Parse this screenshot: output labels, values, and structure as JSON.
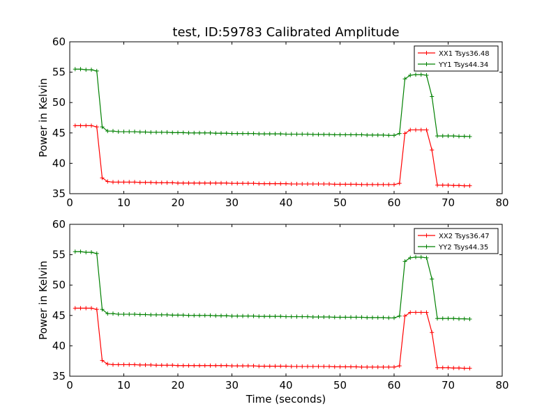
{
  "title": "test, ID:59783 Calibrated Amplitude",
  "xlabel": "Time (seconds)",
  "colors": {
    "xx": "#ff0000",
    "yy": "#008000"
  },
  "chart_data": [
    {
      "type": "line",
      "title": "test, ID:59783 Calibrated Amplitude",
      "xlabel": "",
      "ylabel": "Power in Kelvin",
      "xlim": [
        0,
        80
      ],
      "ylim": [
        35,
        60
      ],
      "xticks": [
        0,
        10,
        20,
        30,
        40,
        50,
        60,
        70,
        80
      ],
      "yticks": [
        35,
        40,
        45,
        50,
        55,
        60
      ],
      "grid": false,
      "legend_position": "top-right",
      "series": [
        {
          "name": "XX1 Tsys36.48",
          "color": "#ff0000",
          "marker": "plus",
          "x": [
            1,
            2,
            3,
            4,
            5,
            6,
            7,
            8,
            9,
            10,
            11,
            12,
            13,
            14,
            15,
            16,
            17,
            18,
            19,
            20,
            21,
            22,
            23,
            24,
            25,
            26,
            27,
            28,
            29,
            30,
            31,
            32,
            33,
            34,
            35,
            36,
            37,
            38,
            39,
            40,
            41,
            42,
            43,
            44,
            45,
            46,
            47,
            48,
            49,
            50,
            51,
            52,
            53,
            54,
            55,
            56,
            57,
            58,
            59,
            60,
            61,
            62,
            63,
            64,
            65,
            66,
            67,
            68,
            69,
            70,
            71,
            72,
            73,
            74
          ],
          "y": [
            46.2,
            46.2,
            46.2,
            46.2,
            46.0,
            37.6,
            37.0,
            36.9,
            36.9,
            36.9,
            36.9,
            36.9,
            36.85,
            36.85,
            36.85,
            36.8,
            36.8,
            36.8,
            36.8,
            36.75,
            36.75,
            36.75,
            36.75,
            36.75,
            36.75,
            36.75,
            36.75,
            36.75,
            36.75,
            36.7,
            36.7,
            36.7,
            36.7,
            36.7,
            36.65,
            36.65,
            36.65,
            36.65,
            36.65,
            36.65,
            36.6,
            36.6,
            36.6,
            36.6,
            36.6,
            36.6,
            36.6,
            36.6,
            36.55,
            36.55,
            36.55,
            36.55,
            36.55,
            36.5,
            36.5,
            36.5,
            36.5,
            36.5,
            36.5,
            36.5,
            36.7,
            44.9,
            45.5,
            45.5,
            45.5,
            45.5,
            42.2,
            36.4,
            36.4,
            36.4,
            36.35,
            36.35,
            36.3,
            36.3
          ]
        },
        {
          "name": "YY1 Tsys44.34",
          "color": "#008000",
          "marker": "plus",
          "x": [
            1,
            2,
            3,
            4,
            5,
            6,
            7,
            8,
            9,
            10,
            11,
            12,
            13,
            14,
            15,
            16,
            17,
            18,
            19,
            20,
            21,
            22,
            23,
            24,
            25,
            26,
            27,
            28,
            29,
            30,
            31,
            32,
            33,
            34,
            35,
            36,
            37,
            38,
            39,
            40,
            41,
            42,
            43,
            44,
            45,
            46,
            47,
            48,
            49,
            50,
            51,
            52,
            53,
            54,
            55,
            56,
            57,
            58,
            59,
            60,
            61,
            62,
            63,
            64,
            65,
            66,
            67,
            68,
            69,
            70,
            71,
            72,
            73,
            74
          ],
          "y": [
            55.5,
            55.5,
            55.4,
            55.4,
            55.2,
            46.0,
            45.3,
            45.3,
            45.2,
            45.2,
            45.2,
            45.2,
            45.15,
            45.15,
            45.1,
            45.1,
            45.1,
            45.1,
            45.05,
            45.05,
            45.05,
            45.0,
            45.0,
            45.0,
            45.0,
            45.0,
            44.95,
            44.95,
            44.95,
            44.9,
            44.9,
            44.9,
            44.9,
            44.9,
            44.85,
            44.85,
            44.85,
            44.85,
            44.85,
            44.8,
            44.8,
            44.8,
            44.8,
            44.8,
            44.75,
            44.75,
            44.75,
            44.75,
            44.7,
            44.7,
            44.7,
            44.7,
            44.7,
            44.7,
            44.65,
            44.65,
            44.65,
            44.65,
            44.6,
            44.6,
            44.9,
            53.9,
            54.5,
            54.6,
            54.6,
            54.5,
            51.0,
            44.5,
            44.5,
            44.5,
            44.5,
            44.45,
            44.45,
            44.4
          ]
        }
      ]
    },
    {
      "type": "line",
      "title": "",
      "xlabel": "Time (seconds)",
      "ylabel": "Power in Kelvin",
      "xlim": [
        0,
        80
      ],
      "ylim": [
        35,
        60
      ],
      "xticks": [
        0,
        10,
        20,
        30,
        40,
        50,
        60,
        70,
        80
      ],
      "yticks": [
        35,
        40,
        45,
        50,
        55,
        60
      ],
      "grid": false,
      "legend_position": "top-right",
      "series": [
        {
          "name": "XX2 Tsys36.47",
          "color": "#ff0000",
          "marker": "plus",
          "x": [
            1,
            2,
            3,
            4,
            5,
            6,
            7,
            8,
            9,
            10,
            11,
            12,
            13,
            14,
            15,
            16,
            17,
            18,
            19,
            20,
            21,
            22,
            23,
            24,
            25,
            26,
            27,
            28,
            29,
            30,
            31,
            32,
            33,
            34,
            35,
            36,
            37,
            38,
            39,
            40,
            41,
            42,
            43,
            44,
            45,
            46,
            47,
            48,
            49,
            50,
            51,
            52,
            53,
            54,
            55,
            56,
            57,
            58,
            59,
            60,
            61,
            62,
            63,
            64,
            65,
            66,
            67,
            68,
            69,
            70,
            71,
            72,
            73,
            74
          ],
          "y": [
            46.2,
            46.2,
            46.2,
            46.2,
            46.0,
            37.6,
            37.0,
            36.9,
            36.9,
            36.9,
            36.9,
            36.9,
            36.85,
            36.85,
            36.85,
            36.8,
            36.8,
            36.8,
            36.8,
            36.75,
            36.75,
            36.75,
            36.75,
            36.75,
            36.75,
            36.75,
            36.75,
            36.75,
            36.75,
            36.7,
            36.7,
            36.7,
            36.7,
            36.7,
            36.65,
            36.65,
            36.65,
            36.65,
            36.65,
            36.65,
            36.6,
            36.6,
            36.6,
            36.6,
            36.6,
            36.6,
            36.6,
            36.6,
            36.55,
            36.55,
            36.55,
            36.55,
            36.55,
            36.5,
            36.5,
            36.5,
            36.5,
            36.5,
            36.5,
            36.5,
            36.7,
            44.9,
            45.5,
            45.5,
            45.5,
            45.5,
            42.2,
            36.4,
            36.4,
            36.4,
            36.35,
            36.35,
            36.3,
            36.3
          ]
        },
        {
          "name": "YY2 Tsys44.35",
          "color": "#008000",
          "marker": "plus",
          "x": [
            1,
            2,
            3,
            4,
            5,
            6,
            7,
            8,
            9,
            10,
            11,
            12,
            13,
            14,
            15,
            16,
            17,
            18,
            19,
            20,
            21,
            22,
            23,
            24,
            25,
            26,
            27,
            28,
            29,
            30,
            31,
            32,
            33,
            34,
            35,
            36,
            37,
            38,
            39,
            40,
            41,
            42,
            43,
            44,
            45,
            46,
            47,
            48,
            49,
            50,
            51,
            52,
            53,
            54,
            55,
            56,
            57,
            58,
            59,
            60,
            61,
            62,
            63,
            64,
            65,
            66,
            67,
            68,
            69,
            70,
            71,
            72,
            73,
            74
          ],
          "y": [
            55.5,
            55.5,
            55.4,
            55.4,
            55.2,
            46.0,
            45.3,
            45.3,
            45.2,
            45.2,
            45.2,
            45.2,
            45.15,
            45.15,
            45.1,
            45.1,
            45.1,
            45.1,
            45.05,
            45.05,
            45.05,
            45.0,
            45.0,
            45.0,
            45.0,
            45.0,
            44.95,
            44.95,
            44.95,
            44.9,
            44.9,
            44.9,
            44.9,
            44.9,
            44.85,
            44.85,
            44.85,
            44.85,
            44.85,
            44.8,
            44.8,
            44.8,
            44.8,
            44.8,
            44.75,
            44.75,
            44.75,
            44.75,
            44.7,
            44.7,
            44.7,
            44.7,
            44.7,
            44.7,
            44.65,
            44.65,
            44.65,
            44.65,
            44.6,
            44.6,
            44.9,
            53.9,
            54.5,
            54.6,
            54.6,
            54.5,
            51.0,
            44.5,
            44.5,
            44.5,
            44.5,
            44.45,
            44.45,
            44.4
          ]
        }
      ]
    }
  ]
}
